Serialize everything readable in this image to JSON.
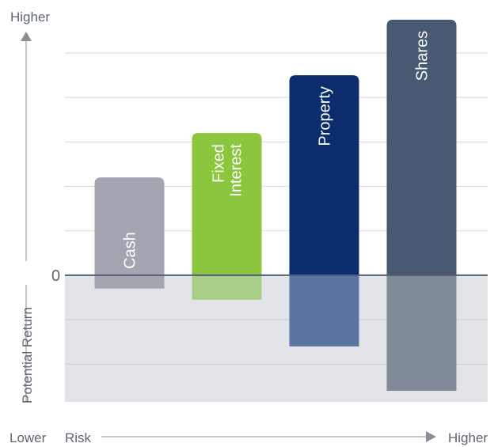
{
  "chart_data": {
    "type": "bar",
    "categories": [
      "Cash",
      "Fixed Interest",
      "Property",
      "Shares"
    ],
    "category_label_lines": [
      [
        "Cash"
      ],
      [
        "Fixed",
        "Interest"
      ],
      [
        "Property"
      ],
      [
        "Shares"
      ]
    ],
    "series": [
      {
        "values": [
          2.2,
          3.2,
          4.5,
          5.75
        ],
        "colors": [
          "#a3a6b1",
          "#8cc63f",
          "#0b2d6e",
          "#475a72"
        ]
      },
      {
        "values": [
          -0.3,
          -0.55,
          -1.6,
          -2.6
        ],
        "colors": [
          "#a3a6b1",
          "#a8cf86",
          "#5b74a1",
          "#818a99"
        ]
      }
    ],
    "ylim": [
      -2.85,
      6.05
    ],
    "zero_label": "0",
    "grid": true,
    "y_axis": {
      "ylabel": "Potential Return",
      "top_label": "Higher"
    },
    "x_axis": {
      "xlabel": "Risk",
      "left_label": "Lower",
      "right_label": "Higher"
    },
    "colors": {
      "plot_positive_bg": "#ffffff",
      "plot_negative_bg": "#e3e4e8",
      "zero_line": "#4f5f73",
      "grid": "#d5d7dc",
      "axis": "#8a8f98"
    }
  }
}
